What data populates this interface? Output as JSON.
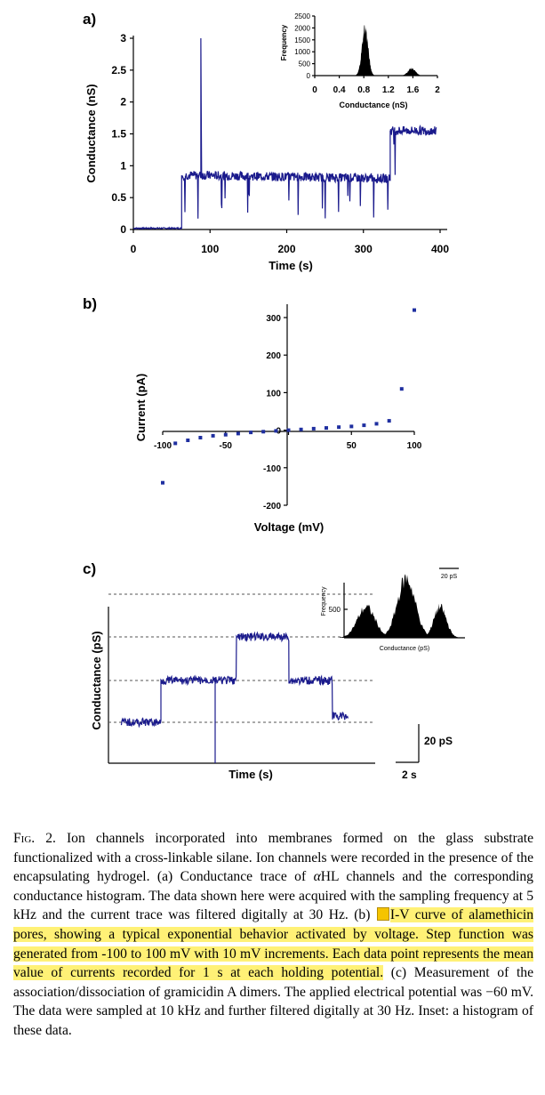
{
  "colors": {
    "trace": "#1a1a8c",
    "points": "#1f2fa0",
    "highlight": "#fff176",
    "hist": "#000000"
  },
  "panel_labels": {
    "a": "a)",
    "b": "b)",
    "c": "c)"
  },
  "caption": {
    "fig": "Fig. 2.",
    "part1": " Ion channels incorporated into membranes formed on the glass substrate functionalized with a cross-linkable silane. Ion channels were recorded in the presence of the encapsulating hydrogel. (a) Conductance trace of ",
    "alpha": "α",
    "part2": "HL channels and the corresponding conductance histogram. The data shown here were acquired with the sampling frequency at 5 kHz and the current trace was filtered digitally at 30 Hz. (b) ",
    "highlighted": "I-V curve of alamethicin pores, showing a typical exponential behavior activated by voltage. Step function was generated from -100 to 100 mV with 10 mV increments. Each data point represents the mean value of currents recorded for 1 s at each holding potential.",
    "part3": " (c) Measurement of the association/dissociation of gramicidin A dimers. The applied electrical potential was −60  mV. The data were sampled at 10 kHz and further filtered digitally at 30 Hz. Inset: a histogram of these data.",
    "note_icon": "sticky-note-icon"
  },
  "chart_data": [
    {
      "type": "line",
      "panel": "a",
      "xlabel": "Time (s)",
      "ylabel": "Conductance (nS)",
      "xlim": [
        0,
        400
      ],
      "ylim": [
        0,
        3
      ],
      "xticks": [
        "0",
        "100",
        "200",
        "300",
        "400"
      ],
      "yticks": [
        "0",
        "0.5",
        "1",
        "1.5",
        "2",
        "2.5",
        "3"
      ],
      "series": [
        {
          "x": [
            0,
            63,
            63,
            88,
            88,
            89,
            89,
            335,
            335,
            395
          ],
          "values": [
            0.02,
            0.02,
            0.85,
            0.85,
            3.0,
            0.85,
            0.85,
            0.8,
            1.55,
            1.55
          ]
        }
      ],
      "inset": {
        "type": "bar",
        "xlabel": "Conductance (nS)",
        "ylabel": "Frequency",
        "xlim": [
          0,
          2
        ],
        "ylim": [
          0,
          2500
        ],
        "xticks": [
          "0",
          "0.4",
          "0.8",
          "1.2",
          "1.6",
          "2"
        ],
        "yticks": [
          "0",
          "500",
          "1000",
          "1500",
          "2000",
          "2500"
        ],
        "peaks": [
          {
            "center": 0.82,
            "height": 2000
          },
          {
            "center": 1.58,
            "height": 300
          }
        ]
      }
    },
    {
      "type": "scatter",
      "panel": "b",
      "xlabel": "Voltage (mV)",
      "ylabel": "Current (pA)",
      "xlim": [
        -100,
        100
      ],
      "ylim": [
        -200,
        300
      ],
      "xticks": [
        "-100",
        "-50",
        "0",
        "50",
        "100"
      ],
      "yticks": [
        "-200",
        "-100",
        "0",
        "100",
        "200",
        "300"
      ],
      "x": [
        -100,
        -90,
        -80,
        -70,
        -60,
        -50,
        -40,
        -30,
        -20,
        -10,
        0,
        10,
        20,
        30,
        40,
        50,
        60,
        70,
        80,
        90,
        100
      ],
      "values": [
        -140,
        -35,
        -27,
        -20,
        -15,
        -12,
        -9,
        -6,
        -4,
        -2,
        0,
        2,
        4,
        6,
        8,
        10,
        13,
        17,
        25,
        110,
        320
      ]
    },
    {
      "type": "line",
      "panel": "c",
      "xlabel": "Time (s)",
      "ylabel": "Conductance (pS)",
      "scale_bars": {
        "y": "20 pS",
        "x": "2 s"
      },
      "levels": 4,
      "inset": {
        "type": "bar",
        "xlabel": "Conductance (pS)",
        "ylabel": "Frequency",
        "ytick": "500",
        "scale_bar": "20 pS"
      }
    }
  ]
}
